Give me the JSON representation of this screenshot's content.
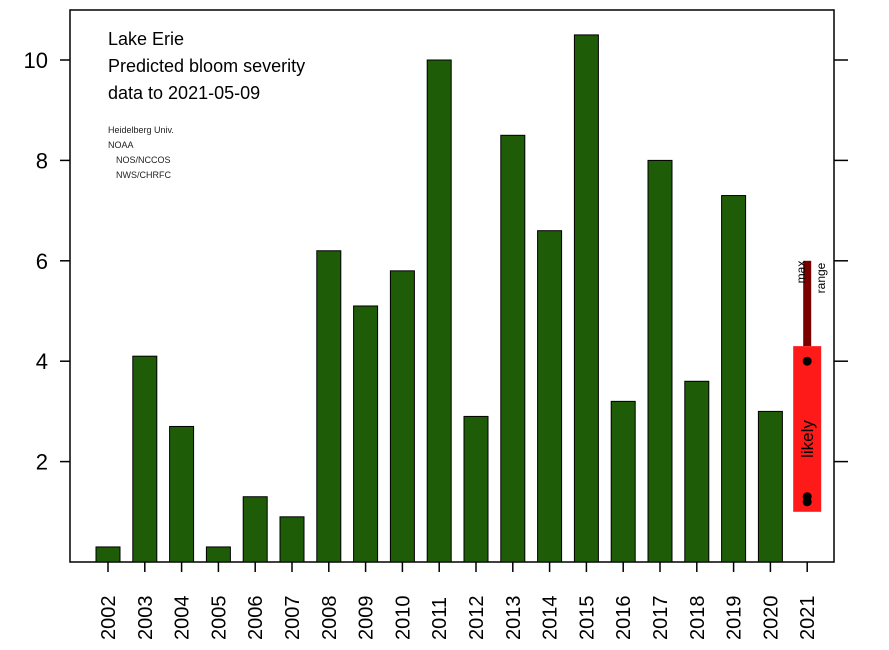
{
  "chart_data": {
    "type": "bar",
    "title_lines": [
      "Lake Erie",
      "Predicted bloom severity",
      "data to 2021-05-09"
    ],
    "credits": [
      "Heidelberg Univ.",
      "NOAA",
      "NOS/NCCOS",
      "NWS/CHRFC"
    ],
    "categories": [
      "2002",
      "2003",
      "2004",
      "2005",
      "2006",
      "2007",
      "2008",
      "2009",
      "2010",
      "2011",
      "2012",
      "2013",
      "2014",
      "2015",
      "2016",
      "2017",
      "2018",
      "2019",
      "2020",
      "2021"
    ],
    "values": [
      0.3,
      4.1,
      2.7,
      0.3,
      1.3,
      0.9,
      6.2,
      5.1,
      5.8,
      10.0,
      2.9,
      8.5,
      6.6,
      10.5,
      3.2,
      8.0,
      3.6,
      7.3,
      3.0,
      null
    ],
    "yticks": [
      2,
      4,
      6,
      8,
      10
    ],
    "ylim": [
      0,
      11
    ],
    "bar_color": "#1f5c08",
    "forecast": {
      "category": "2021",
      "likely_range": [
        1.0,
        4.3
      ],
      "likely_label": "likely",
      "likely_color": "#ff1a1a",
      "max_range": [
        4.3,
        6.0
      ],
      "max_label_1": "max",
      "max_label_2": "range",
      "max_color": "#7a0000",
      "points": [
        4.0,
        1.3,
        1.2
      ]
    },
    "grid": false
  }
}
